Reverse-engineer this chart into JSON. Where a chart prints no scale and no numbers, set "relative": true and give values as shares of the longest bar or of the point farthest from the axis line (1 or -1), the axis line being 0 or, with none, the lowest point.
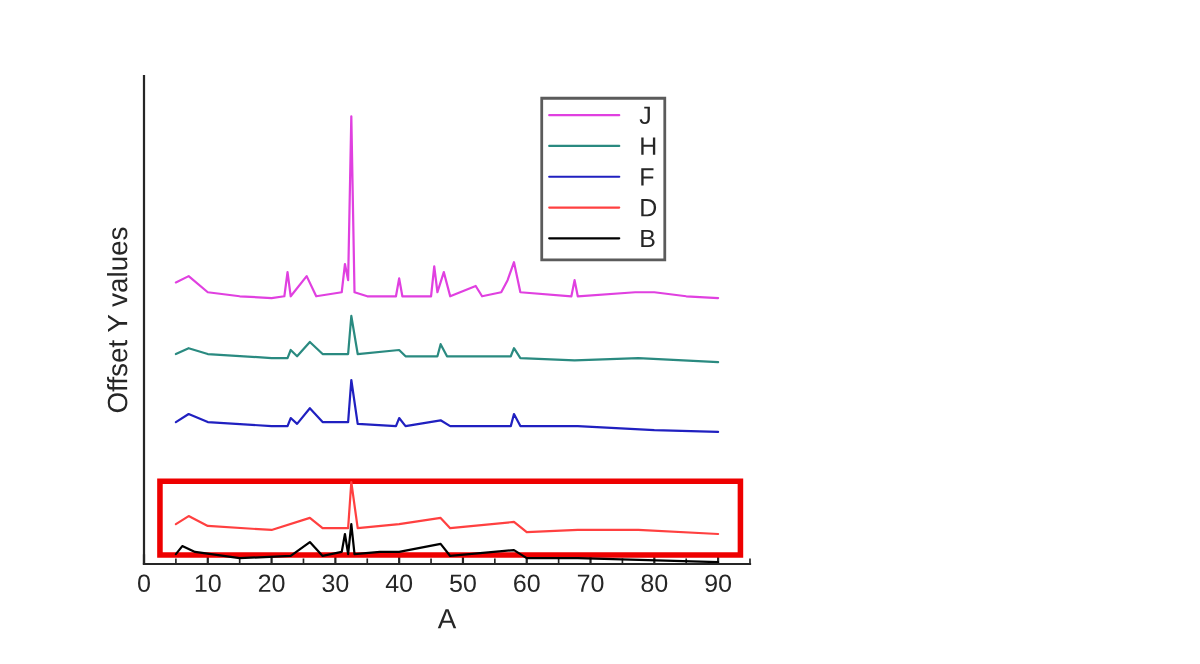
{
  "chart_data": {
    "type": "line",
    "xlabel": "A",
    "ylabel": "Offset Y values",
    "relative": true,
    "xlim": [
      0,
      95
    ],
    "xticks": [
      0,
      10,
      20,
      30,
      40,
      50,
      60,
      70,
      80,
      90
    ],
    "legend": "top right",
    "grid": false,
    "marker": "none",
    "line_style": "solid",
    "series": [
      {
        "name": "J",
        "color": "#e040e0",
        "x": [
          5,
          7,
          10,
          15,
          20,
          22,
          22.5,
          23,
          25.5,
          27,
          31,
          31.5,
          32,
          32.5,
          33,
          35,
          39.5,
          40,
          40.5,
          45,
          45.5,
          46,
          47,
          48,
          52,
          53,
          56,
          57,
          58,
          59,
          67,
          67.5,
          68,
          77,
          80,
          85,
          90
        ],
        "values": [
          0.629,
          0.643,
          0.607,
          0.598,
          0.594,
          0.598,
          0.652,
          0.598,
          0.643,
          0.598,
          0.607,
          0.67,
          0.634,
          1.0,
          0.607,
          0.598,
          0.598,
          0.638,
          0.598,
          0.598,
          0.665,
          0.607,
          0.652,
          0.598,
          0.621,
          0.598,
          0.607,
          0.634,
          0.674,
          0.607,
          0.598,
          0.634,
          0.598,
          0.607,
          0.607,
          0.598,
          0.594
        ]
      },
      {
        "name": "H",
        "color": "#2a8a80",
        "x": [
          5,
          7,
          10,
          20,
          22.5,
          23,
          24,
          26,
          28,
          32,
          32.5,
          33.5,
          40,
          41,
          46,
          46.5,
          47.5,
          57.5,
          58,
          59,
          67.5,
          77.5,
          90
        ],
        "values": [
          0.469,
          0.482,
          0.469,
          0.46,
          0.46,
          0.478,
          0.464,
          0.496,
          0.469,
          0.469,
          0.554,
          0.469,
          0.478,
          0.464,
          0.464,
          0.491,
          0.464,
          0.464,
          0.482,
          0.46,
          0.455,
          0.46,
          0.451
        ]
      },
      {
        "name": "F",
        "color": "#2020c0",
        "x": [
          5,
          7,
          10,
          20,
          22.5,
          23,
          24,
          26,
          28,
          32,
          32.5,
          33.5,
          39.5,
          40,
          41,
          46.5,
          48,
          57.5,
          58,
          59,
          68,
          80,
          90
        ],
        "values": [
          0.317,
          0.335,
          0.317,
          0.308,
          0.308,
          0.326,
          0.313,
          0.348,
          0.317,
          0.317,
          0.411,
          0.313,
          0.308,
          0.326,
          0.308,
          0.321,
          0.308,
          0.308,
          0.335,
          0.308,
          0.308,
          0.299,
          0.295
        ]
      },
      {
        "name": "D",
        "color": "#ff4040",
        "x": [
          5,
          7,
          10,
          20,
          26,
          28,
          32,
          32.5,
          33.5,
          40,
          46.5,
          48,
          58,
          60,
          68,
          77.5,
          90
        ],
        "values": [
          0.089,
          0.107,
          0.085,
          0.076,
          0.103,
          0.08,
          0.08,
          0.183,
          0.08,
          0.089,
          0.103,
          0.08,
          0.094,
          0.071,
          0.076,
          0.076,
          0.067
        ]
      },
      {
        "name": "B",
        "color": "#000000",
        "x": [
          5,
          6,
          8,
          15,
          23,
          26,
          28,
          31,
          31.5,
          32,
          32.5,
          33,
          37,
          40,
          46.5,
          48,
          58,
          60,
          68,
          90
        ],
        "values": [
          0.022,
          0.04,
          0.027,
          0.013,
          0.018,
          0.049,
          0.018,
          0.027,
          0.067,
          0.022,
          0.089,
          0.022,
          0.027,
          0.027,
          0.045,
          0.018,
          0.031,
          0.013,
          0.013,
          0.004
        ]
      }
    ]
  }
}
